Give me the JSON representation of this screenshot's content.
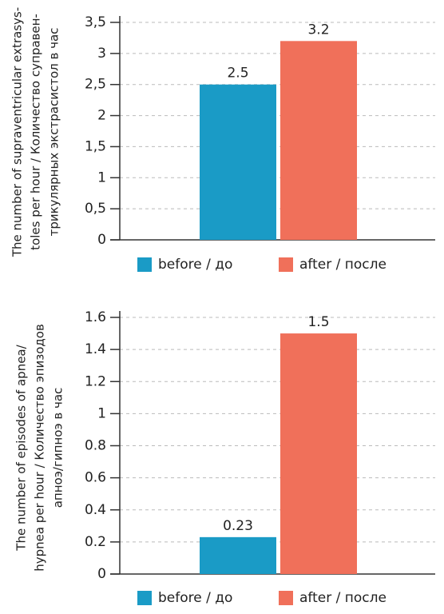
{
  "chart_data": [
    {
      "type": "bar",
      "ylabel": [
        "The number of supraventricular extrasys-",
        "toles per hour / Количество суправен-",
        "трикулярных экстрасистол в час"
      ],
      "series": [
        {
          "name": "before / до",
          "color": "#1a9bc6",
          "values": [
            2.5
          ]
        },
        {
          "name": "after / после",
          "color": "#f0705a",
          "values": [
            3.2
          ]
        }
      ],
      "ylim": [
        0,
        3.5
      ],
      "yticks": [
        0,
        {
          "value": 0.5,
          "label": "0,5"
        },
        1,
        {
          "value": 1.5,
          "label": "1,5"
        },
        2,
        {
          "value": 2.5,
          "label": "2,5"
        },
        3,
        {
          "value": 3.5,
          "label": "3,5"
        }
      ],
      "grid": true
    },
    {
      "type": "bar",
      "ylabel": [
        "The number of episodes of apnea/",
        "hypnea per hour / Количество эпизодов",
        "апноэ/гипноэ в час"
      ],
      "series": [
        {
          "name": "before / до",
          "color": "#1a9bc6",
          "values": [
            0.23
          ]
        },
        {
          "name": "after / после",
          "color": "#f0705a",
          "values": [
            1.5
          ]
        }
      ],
      "ylim": [
        0,
        1.6
      ],
      "yticks": [
        0,
        0.2,
        0.4,
        0.6,
        0.8,
        1,
        1.2,
        1.4,
        1.6
      ],
      "grid": true
    }
  ]
}
